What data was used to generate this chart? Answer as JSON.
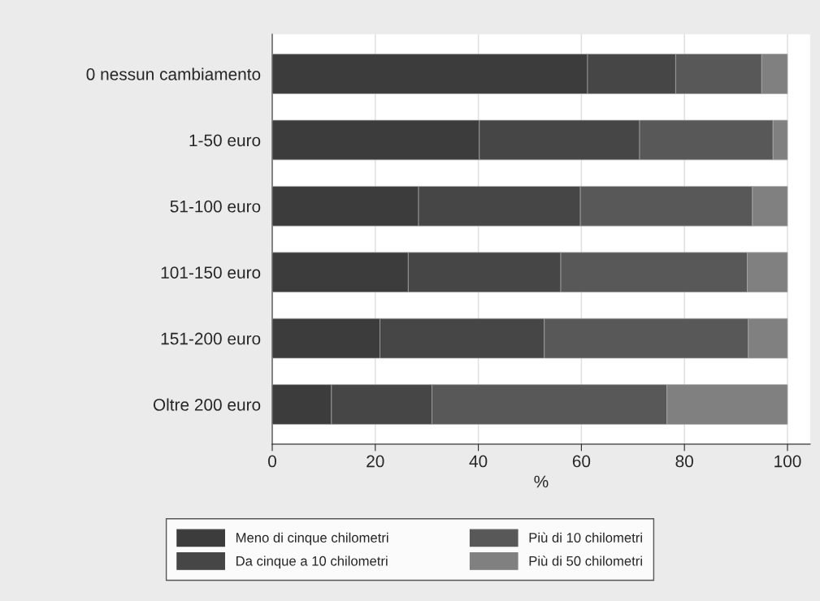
{
  "chart_data": {
    "type": "bar",
    "orientation": "horizontal",
    "stacked": true,
    "categories": [
      "0 nessun cambiamento",
      "1-50 euro",
      "51-100 euro",
      "101-150 euro",
      "151-200 euro",
      "Oltre 200 euro"
    ],
    "series": [
      {
        "name": "Meno di cinque chilometri",
        "color": "#3c3c3c",
        "values": [
          61.2,
          40.2,
          28.4,
          26.4,
          20.9,
          11.5
        ]
      },
      {
        "name": "Da cinque a 10 chilometri",
        "color": "#464646",
        "values": [
          17.1,
          31.1,
          31.4,
          29.6,
          31.9,
          19.5
        ]
      },
      {
        "name": "Più di 10 chilometri",
        "color": "#585858",
        "values": [
          16.7,
          25.9,
          33.4,
          36.2,
          39.6,
          45.6
        ]
      },
      {
        "name": "Più di 50 chilometri",
        "color": "#808080",
        "values": [
          5.0,
          2.8,
          6.8,
          7.8,
          7.6,
          23.4
        ]
      }
    ],
    "xlabel": "%",
    "xlim": [
      0,
      104.4
    ],
    "xticks": [
      0,
      20,
      40,
      60,
      80,
      100
    ],
    "grid": "x",
    "legend": "bottom"
  }
}
